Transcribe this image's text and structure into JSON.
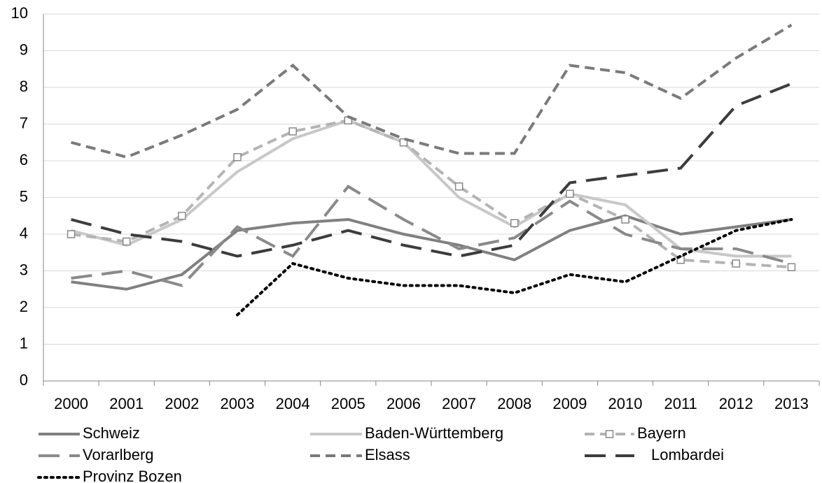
{
  "chart_data": {
    "type": "line",
    "categories": [
      "2000",
      "2001",
      "2002",
      "2003",
      "2004",
      "2005",
      "2006",
      "2007",
      "2008",
      "2009",
      "2010",
      "2011",
      "2012",
      "2013"
    ],
    "ylim": [
      0,
      10
    ],
    "yticks": [
      0,
      1,
      2,
      3,
      4,
      5,
      6,
      7,
      8,
      9,
      10
    ],
    "grid": true,
    "legend": "bottom",
    "series": [
      {
        "name": "Schweiz",
        "color": "#808080",
        "style": "solid",
        "values": [
          2.7,
          2.5,
          2.9,
          4.1,
          4.3,
          4.4,
          4.0,
          3.7,
          3.3,
          4.1,
          4.5,
          4.0,
          4.2,
          4.4
        ]
      },
      {
        "name": "Baden-Württemberg",
        "color": "#c8c8c8",
        "style": "solid",
        "values": [
          4.1,
          3.7,
          4.4,
          5.7,
          6.6,
          7.1,
          6.5,
          5.0,
          4.2,
          5.1,
          4.8,
          3.6,
          3.4,
          3.4
        ]
      },
      {
        "name": "Bayern",
        "color": "#b4b4b4",
        "style": "dash",
        "marker": "square",
        "values": [
          4.0,
          3.8,
          4.5,
          6.1,
          6.8,
          7.1,
          6.5,
          5.3,
          4.3,
          5.1,
          4.4,
          3.3,
          3.2,
          3.1
        ]
      },
      {
        "name": "Vorarlberg",
        "color": "#8a8a8a",
        "style": "longdash",
        "values": [
          2.8,
          3.0,
          2.6,
          4.2,
          3.4,
          5.3,
          4.4,
          3.6,
          3.9,
          4.9,
          4.0,
          3.6,
          3.6,
          3.2
        ]
      },
      {
        "name": "Elsass",
        "color": "#7a7a7a",
        "style": "dash",
        "values": [
          6.5,
          6.1,
          6.7,
          7.4,
          8.6,
          7.2,
          6.6,
          6.2,
          6.2,
          8.6,
          8.4,
          7.7,
          8.8,
          9.7
        ]
      },
      {
        "name": "Lombardei",
        "color": "#3c3c3c",
        "style": "longdash",
        "values": [
          4.4,
          4.0,
          3.8,
          3.4,
          3.7,
          4.1,
          3.7,
          3.4,
          3.7,
          5.4,
          5.6,
          5.8,
          7.5,
          8.1
        ]
      },
      {
        "name": "Provinz Bozen",
        "color": "#000000",
        "style": "dot",
        "values": [
          null,
          null,
          null,
          1.8,
          3.2,
          2.8,
          2.6,
          2.6,
          2.4,
          2.9,
          2.7,
          3.4,
          4.1,
          4.4
        ]
      }
    ]
  }
}
